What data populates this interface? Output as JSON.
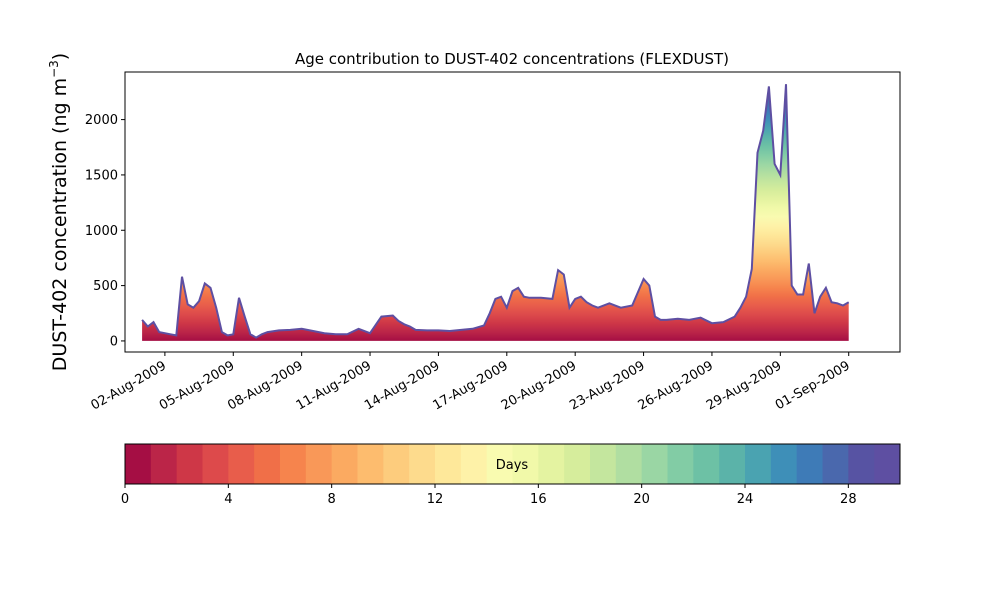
{
  "chart_data": {
    "type": "area",
    "title": "Age contribution to DUST-402 concentrations (FLEXDUST)",
    "ylabel": "DUST-402 concentration (ng m",
    "ylabel_sup": "−3",
    "ylabel_close": ")",
    "ylim": [
      -100,
      2430
    ],
    "xlim": [
      "2009-07-31T06:00",
      "2009-09-03T06:00"
    ],
    "yticks": [
      0,
      500,
      1000,
      1500,
      2000
    ],
    "xticks": [
      "02-Aug-2009",
      "05-Aug-2009",
      "08-Aug-2009",
      "11-Aug-2009",
      "14-Aug-2009",
      "17-Aug-2009",
      "20-Aug-2009",
      "23-Aug-2009",
      "26-Aug-2009",
      "29-Aug-2009",
      "01-Sep-2009"
    ],
    "xtick_dates": [
      "2009-08-02",
      "2009-08-05",
      "2009-08-08",
      "2009-08-11",
      "2009-08-14",
      "2009-08-17",
      "2009-08-20",
      "2009-08-23",
      "2009-08-26",
      "2009-08-29",
      "2009-09-01"
    ],
    "grid": false,
    "series_stacking": "stacked by age (days 0–30)",
    "total": {
      "x": [
        "2009-08-01T00:00",
        "2009-08-01T06:00",
        "2009-08-01T12:00",
        "2009-08-01T18:00",
        "2009-08-02T00:00",
        "2009-08-02T06:00",
        "2009-08-02T12:00",
        "2009-08-02T18:00",
        "2009-08-03T00:00",
        "2009-08-03T06:00",
        "2009-08-03T12:00",
        "2009-08-03T18:00",
        "2009-08-04T00:00",
        "2009-08-04T06:00",
        "2009-08-04T12:00",
        "2009-08-04T18:00",
        "2009-08-05T00:00",
        "2009-08-05T06:00",
        "2009-08-05T12:00",
        "2009-08-05T18:00",
        "2009-08-06T00:00",
        "2009-08-06T06:00",
        "2009-08-06T12:00",
        "2009-08-07T00:00",
        "2009-08-07T12:00",
        "2009-08-08T00:00",
        "2009-08-08T12:00",
        "2009-08-09T00:00",
        "2009-08-09T12:00",
        "2009-08-10T00:00",
        "2009-08-10T12:00",
        "2009-08-11T00:00",
        "2009-08-11T12:00",
        "2009-08-12T00:00",
        "2009-08-12T06:00",
        "2009-08-12T12:00",
        "2009-08-12T18:00",
        "2009-08-13T00:00",
        "2009-08-13T12:00",
        "2009-08-14T00:00",
        "2009-08-14T12:00",
        "2009-08-15T00:00",
        "2009-08-15T12:00",
        "2009-08-16T00:00",
        "2009-08-16T06:00",
        "2009-08-16T12:00",
        "2009-08-16T18:00",
        "2009-08-17T00:00",
        "2009-08-17T06:00",
        "2009-08-17T12:00",
        "2009-08-17T18:00",
        "2009-08-18T00:00",
        "2009-08-18T12:00",
        "2009-08-19T00:00",
        "2009-08-19T06:00",
        "2009-08-19T12:00",
        "2009-08-19T18:00",
        "2009-08-20T00:00",
        "2009-08-20T06:00",
        "2009-08-20T12:00",
        "2009-08-20T18:00",
        "2009-08-21T00:00",
        "2009-08-21T12:00",
        "2009-08-22T00:00",
        "2009-08-22T12:00",
        "2009-08-23T00:00",
        "2009-08-23T06:00",
        "2009-08-23T12:00",
        "2009-08-23T18:00",
        "2009-08-24T00:00",
        "2009-08-24T12:00",
        "2009-08-25T00:00",
        "2009-08-25T12:00",
        "2009-08-26T00:00",
        "2009-08-26T12:00",
        "2009-08-27T00:00",
        "2009-08-27T06:00",
        "2009-08-27T12:00",
        "2009-08-27T18:00",
        "2009-08-28T00:00",
        "2009-08-28T06:00",
        "2009-08-28T12:00",
        "2009-08-28T18:00",
        "2009-08-29T00:00",
        "2009-08-29T06:00",
        "2009-08-29T12:00",
        "2009-08-29T18:00",
        "2009-08-30T00:00",
        "2009-08-30T06:00",
        "2009-08-30T12:00",
        "2009-08-30T18:00",
        "2009-08-31T00:00",
        "2009-08-31T06:00",
        "2009-08-31T12:00",
        "2009-08-31T18:00",
        "2009-09-01T00:00"
      ],
      "values": [
        190,
        130,
        170,
        80,
        70,
        60,
        50,
        580,
        330,
        300,
        360,
        520,
        480,
        300,
        80,
        50,
        60,
        390,
        220,
        60,
        30,
        60,
        80,
        95,
        100,
        110,
        90,
        70,
        60,
        60,
        110,
        70,
        220,
        230,
        180,
        150,
        130,
        100,
        95,
        95,
        90,
        100,
        110,
        140,
        250,
        380,
        400,
        300,
        450,
        480,
        400,
        390,
        390,
        380,
        640,
        600,
        300,
        380,
        400,
        350,
        320,
        300,
        340,
        300,
        320,
        560,
        500,
        220,
        190,
        190,
        200,
        190,
        210,
        160,
        170,
        220,
        300,
        400,
        650,
        1700,
        1900,
        2300,
        1600,
        1500,
        2320,
        500,
        420,
        420,
        700,
        250,
        400,
        480,
        350,
        340,
        320,
        350
      ]
    },
    "colorbar": {
      "label": "Days",
      "ticks": [
        0,
        4,
        8,
        12,
        16,
        20,
        24,
        28
      ],
      "range": [
        0,
        30
      ],
      "colors": [
        "#a50e44",
        "#bb2548",
        "#ce3747",
        "#dd4a4b",
        "#e85d4b",
        "#f06f48",
        "#f6844d",
        "#f99858",
        "#fbaa61",
        "#fdbc6e",
        "#fdcc7d",
        "#fddb8d",
        "#fee89a",
        "#fef2a8",
        "#f9fbb0",
        "#f1f9a9",
        "#e4f3a1",
        "#d6ed9c",
        "#c4e69e",
        "#b0dea1",
        "#9ad6a4",
        "#82ccA5",
        "#6dc1a5",
        "#5bb3a9",
        "#4aa3b1",
        "#3e8fb8",
        "#3e7bb7",
        "#4a68ad",
        "#5753a3",
        "#5e4fa2"
      ]
    }
  }
}
